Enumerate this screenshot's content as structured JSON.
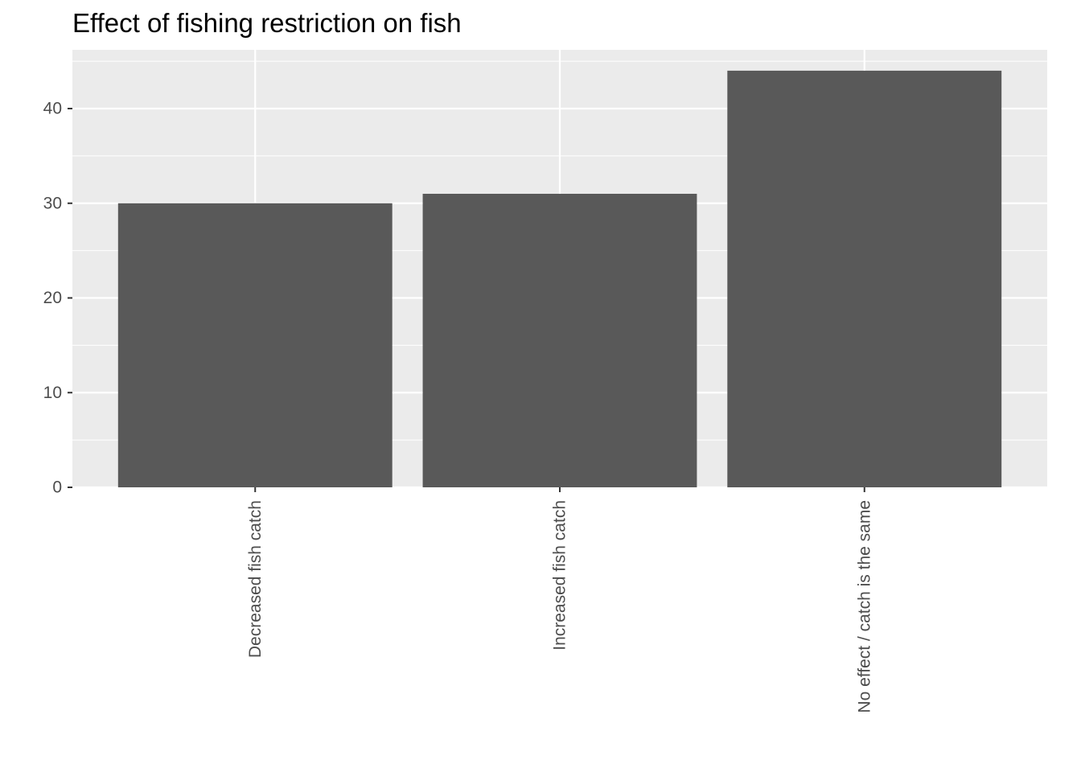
{
  "chart_data": {
    "type": "bar",
    "title": "Effect of fishing restriction on fish",
    "xlabel": "",
    "ylabel": "",
    "categories": [
      "Decreased fish catch",
      "Increased fish catch",
      "No effect / catch is the same"
    ],
    "values": [
      30,
      31,
      44
    ],
    "ylim": [
      0,
      46.2
    ],
    "yticks": [
      0,
      10,
      20,
      30,
      40
    ],
    "x_tick_rotation": "vertical",
    "grid": true,
    "legend": "none",
    "colors": {
      "panel_background": "#ebebeb",
      "grid": "#ffffff",
      "bar_fill": "#595959",
      "tick_text": "#4d4d4d",
      "tick_mark": "#333333",
      "title_text": "#000000"
    }
  }
}
